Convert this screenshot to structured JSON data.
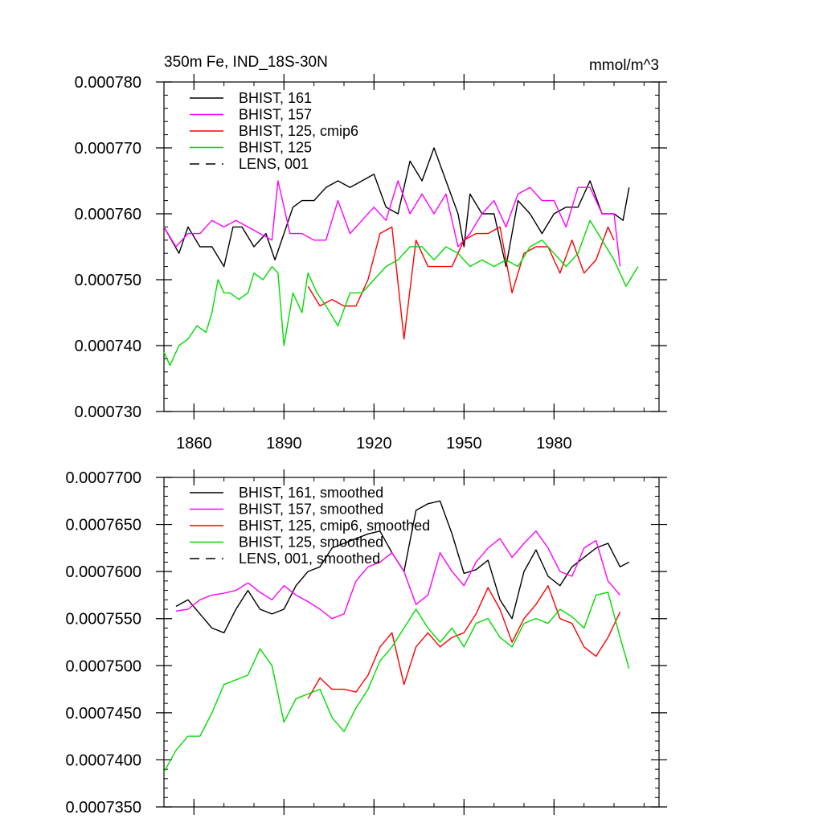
{
  "chart_data": [
    {
      "type": "line",
      "title": "350m Fe, IND_18S-30N",
      "units": "mmol/m^3",
      "xlabel": "",
      "ylabel": "",
      "xlim": [
        1850,
        2015
      ],
      "ylim": [
        0.00073,
        0.00078
      ],
      "xticks": [
        1860,
        1890,
        1920,
        1950,
        1980
      ],
      "xtick_labels": [
        "1860",
        "1890",
        "1920",
        "1950",
        "1980"
      ],
      "yticks": [
        0.00073,
        0.00074,
        0.00075,
        0.00076,
        0.00077,
        0.00078
      ],
      "ytick_labels": [
        "0.000730",
        "0.000740",
        "0.000750",
        "0.000760",
        "0.000770",
        "0.000780"
      ],
      "grid": false,
      "legend_position": "top-left",
      "legend": [
        {
          "name": "BHIST, 161",
          "color": "#000000",
          "dash": false
        },
        {
          "name": "BHIST, 157",
          "color": "#ff00ff",
          "dash": false
        },
        {
          "name": "BHIST, 125, cmip6",
          "color": "#ff0000",
          "dash": false
        },
        {
          "name": "BHIST, 125",
          "color": "#00dd00",
          "dash": false
        },
        {
          "name": "LENS, 001",
          "color": "#000000",
          "dash": true
        }
      ],
      "series": [
        {
          "name": "BHIST, 161",
          "color": "#000000",
          "x": [
            1850,
            1855,
            1858,
            1862,
            1866,
            1870,
            1873,
            1876,
            1880,
            1884,
            1887,
            1890,
            1893,
            1896,
            1900,
            1904,
            1908,
            1912,
            1916,
            1920,
            1924,
            1928,
            1932,
            1936,
            1940,
            1944,
            1948,
            1950,
            1952,
            1956,
            1960,
            1964,
            1968,
            1972,
            1976,
            1980,
            1984,
            1988,
            1992,
            1996,
            2000,
            2003,
            2005
          ],
          "y": [
            0.000758,
            0.000754,
            0.000758,
            0.000755,
            0.000755,
            0.000752,
            0.000758,
            0.000758,
            0.000755,
            0.000757,
            0.000753,
            0.000757,
            0.000761,
            0.000762,
            0.000762,
            0.000764,
            0.000765,
            0.000764,
            0.000765,
            0.000766,
            0.000761,
            0.00076,
            0.000768,
            0.000765,
            0.00077,
            0.000765,
            0.00076,
            0.000755,
            0.000763,
            0.00076,
            0.00076,
            0.000752,
            0.000762,
            0.00076,
            0.000757,
            0.00076,
            0.000761,
            0.000761,
            0.000765,
            0.00076,
            0.00076,
            0.000759,
            0.000764
          ]
        },
        {
          "name": "BHIST, 157",
          "color": "#ff00ff",
          "x": [
            1850,
            1854,
            1858,
            1862,
            1866,
            1870,
            1874,
            1878,
            1882,
            1886,
            1888,
            1892,
            1896,
            1900,
            1904,
            1908,
            1912,
            1916,
            1920,
            1924,
            1928,
            1932,
            1936,
            1940,
            1944,
            1948,
            1952,
            1956,
            1960,
            1964,
            1968,
            1972,
            1976,
            1980,
            1984,
            1988,
            1992,
            1996,
            2000,
            2002
          ],
          "y": [
            0.000758,
            0.000755,
            0.000757,
            0.000757,
            0.000759,
            0.000758,
            0.000759,
            0.000758,
            0.000757,
            0.000756,
            0.000765,
            0.000757,
            0.000757,
            0.000756,
            0.000756,
            0.000762,
            0.000757,
            0.000759,
            0.000761,
            0.000759,
            0.000765,
            0.00076,
            0.000763,
            0.00076,
            0.000763,
            0.000755,
            0.000757,
            0.00076,
            0.000762,
            0.000758,
            0.000763,
            0.000764,
            0.000762,
            0.000762,
            0.000758,
            0.000764,
            0.000764,
            0.00076,
            0.00076,
            0.000752
          ]
        },
        {
          "name": "BHIST, 125, cmip6",
          "color": "#ff0000",
          "x": [
            1898,
            1902,
            1906,
            1910,
            1914,
            1918,
            1922,
            1926,
            1930,
            1934,
            1938,
            1942,
            1946,
            1950,
            1954,
            1958,
            1962,
            1966,
            1970,
            1974,
            1978,
            1982,
            1986,
            1990,
            1994,
            1998,
            2000
          ],
          "y": [
            0.000749,
            0.000746,
            0.000747,
            0.000746,
            0.000746,
            0.00075,
            0.000757,
            0.000758,
            0.000741,
            0.000756,
            0.000752,
            0.000752,
            0.000752,
            0.000756,
            0.000757,
            0.000757,
            0.000758,
            0.000748,
            0.000754,
            0.000755,
            0.000755,
            0.000751,
            0.000756,
            0.000751,
            0.000753,
            0.000758,
            0.000756
          ]
        },
        {
          "name": "BHIST, 125",
          "color": "#00dd00",
          "x": [
            1850,
            1852,
            1855,
            1858,
            1861,
            1864,
            1866,
            1868,
            1870,
            1872,
            1875,
            1878,
            1880,
            1883,
            1886,
            1888,
            1890,
            1893,
            1896,
            1898,
            1901,
            1904,
            1908,
            1912,
            1916,
            1920,
            1924,
            1928,
            1932,
            1936,
            1940,
            1944,
            1948,
            1952,
            1956,
            1960,
            1964,
            1968,
            1972,
            1976,
            1980,
            1984,
            1988,
            1992,
            1996,
            2000,
            2004,
            2008
          ],
          "y": [
            0.000739,
            0.000737,
            0.00074,
            0.000741,
            0.000743,
            0.000742,
            0.000745,
            0.00075,
            0.000748,
            0.000748,
            0.000747,
            0.000748,
            0.000751,
            0.00075,
            0.000752,
            0.000751,
            0.00074,
            0.000748,
            0.000745,
            0.000751,
            0.000748,
            0.000746,
            0.000743,
            0.000748,
            0.000748,
            0.00075,
            0.000752,
            0.000753,
            0.000755,
            0.000755,
            0.000753,
            0.000755,
            0.000754,
            0.000752,
            0.000753,
            0.000752,
            0.000753,
            0.000752,
            0.000755,
            0.000756,
            0.000754,
            0.000752,
            0.000754,
            0.000759,
            0.000756,
            0.000753,
            0.000749,
            0.000752
          ]
        }
      ]
    },
    {
      "type": "line",
      "title": "",
      "xlabel": "",
      "ylabel": "",
      "xlim": [
        1850,
        2015
      ],
      "ylim": [
        0.000735,
        0.00077
      ],
      "xticks": [
        1860,
        1890,
        1920,
        1950,
        1980
      ],
      "yticks": [
        0.000735,
        0.00074,
        0.000745,
        0.00075,
        0.000755,
        0.00076,
        0.000765,
        0.00077
      ],
      "ytick_labels": [
        "0.0007350",
        "0.0007400",
        "0.0007450",
        "0.0007500",
        "0.0007550",
        "0.0007600",
        "0.0007650",
        "0.0007700"
      ],
      "grid": false,
      "legend_position": "top-left",
      "legend": [
        {
          "name": "BHIST, 161, smoothed",
          "color": "#000000",
          "dash": false
        },
        {
          "name": "BHIST, 157, smoothed",
          "color": "#ff00ff",
          "dash": false
        },
        {
          "name": "BHIST, 125, cmip6, smoothed",
          "color": "#ff0000",
          "dash": false
        },
        {
          "name": "BHIST, 125, smoothed",
          "color": "#00dd00",
          "dash": false
        },
        {
          "name": "LENS, 001, smoothed",
          "color": "#000000",
          "dash": true
        }
      ],
      "series": [
        {
          "name": "BHIST, 161, smoothed",
          "color": "#000000",
          "x": [
            1854,
            1858,
            1862,
            1866,
            1870,
            1874,
            1878,
            1882,
            1886,
            1890,
            1894,
            1898,
            1902,
            1906,
            1910,
            1914,
            1918,
            1922,
            1926,
            1930,
            1934,
            1938,
            1942,
            1946,
            1950,
            1954,
            1958,
            1962,
            1966,
            1970,
            1974,
            1978,
            1982,
            1986,
            1990,
            1994,
            1998,
            2002,
            2005
          ],
          "y": [
            0.0007563,
            0.000757,
            0.0007555,
            0.000754,
            0.0007535,
            0.000756,
            0.000758,
            0.000756,
            0.0007555,
            0.000756,
            0.0007585,
            0.00076,
            0.0007605,
            0.0007625,
            0.000763,
            0.0007635,
            0.000764,
            0.0007643,
            0.000762,
            0.00076,
            0.0007665,
            0.0007672,
            0.0007675,
            0.000764,
            0.0007598,
            0.0007602,
            0.0007612,
            0.000757,
            0.000755,
            0.00076,
            0.0007623,
            0.0007595,
            0.0007585,
            0.0007605,
            0.0007615,
            0.0007625,
            0.000763,
            0.0007605,
            0.000761
          ]
        },
        {
          "name": "BHIST, 157, smoothed",
          "color": "#ff00ff",
          "x": [
            1854,
            1858,
            1862,
            1866,
            1870,
            1874,
            1878,
            1882,
            1886,
            1890,
            1894,
            1898,
            1902,
            1906,
            1910,
            1914,
            1918,
            1922,
            1926,
            1930,
            1934,
            1938,
            1942,
            1946,
            1950,
            1954,
            1958,
            1962,
            1966,
            1970,
            1974,
            1978,
            1982,
            1986,
            1990,
            1994,
            1998,
            2002
          ],
          "y": [
            0.0007558,
            0.000756,
            0.000757,
            0.0007575,
            0.0007577,
            0.000758,
            0.0007588,
            0.0007578,
            0.000757,
            0.0007585,
            0.0007575,
            0.0007568,
            0.000756,
            0.000755,
            0.0007555,
            0.000759,
            0.0007605,
            0.000761,
            0.000762,
            0.00076,
            0.0007565,
            0.0007575,
            0.000762,
            0.00076,
            0.0007585,
            0.000761,
            0.0007625,
            0.0007635,
            0.0007615,
            0.000763,
            0.0007643,
            0.0007625,
            0.00076,
            0.0007595,
            0.0007625,
            0.0007633,
            0.000759,
            0.0007575
          ]
        },
        {
          "name": "BHIST, 125, cmip6, smoothed",
          "color": "#ff0000",
          "x": [
            1898,
            1902,
            1906,
            1910,
            1914,
            1918,
            1922,
            1926,
            1930,
            1934,
            1938,
            1942,
            1946,
            1950,
            1954,
            1958,
            1962,
            1966,
            1970,
            1974,
            1978,
            1982,
            1986,
            1990,
            1994,
            1998,
            2002
          ],
          "y": [
            0.0007465,
            0.0007487,
            0.0007475,
            0.0007475,
            0.0007472,
            0.000749,
            0.000752,
            0.0007535,
            0.000748,
            0.000752,
            0.0007535,
            0.000752,
            0.000753,
            0.0007535,
            0.0007555,
            0.0007583,
            0.000756,
            0.0007525,
            0.000755,
            0.0007565,
            0.0007585,
            0.000755,
            0.0007545,
            0.000752,
            0.000751,
            0.000753,
            0.0007557
          ]
        },
        {
          "name": "BHIST, 125, smoothed",
          "color": "#00dd00",
          "x": [
            1850,
            1854,
            1858,
            1862,
            1866,
            1870,
            1874,
            1878,
            1882,
            1886,
            1890,
            1894,
            1898,
            1902,
            1906,
            1910,
            1914,
            1918,
            1922,
            1926,
            1930,
            1934,
            1938,
            1942,
            1946,
            1950,
            1954,
            1958,
            1962,
            1966,
            1970,
            1974,
            1978,
            1982,
            1986,
            1990,
            1994,
            1998,
            2002,
            2005
          ],
          "y": [
            0.0007387,
            0.000741,
            0.0007425,
            0.0007425,
            0.000745,
            0.000748,
            0.0007485,
            0.000749,
            0.0007518,
            0.00075,
            0.000744,
            0.0007465,
            0.000747,
            0.0007475,
            0.0007445,
            0.000743,
            0.0007455,
            0.0007475,
            0.0007505,
            0.000752,
            0.000754,
            0.000756,
            0.000754,
            0.0007525,
            0.000754,
            0.000752,
            0.0007545,
            0.000755,
            0.000753,
            0.000752,
            0.0007545,
            0.000755,
            0.0007545,
            0.000756,
            0.0007552,
            0.000754,
            0.0007575,
            0.0007578,
            0.000753,
            0.0007497
          ]
        }
      ]
    }
  ]
}
